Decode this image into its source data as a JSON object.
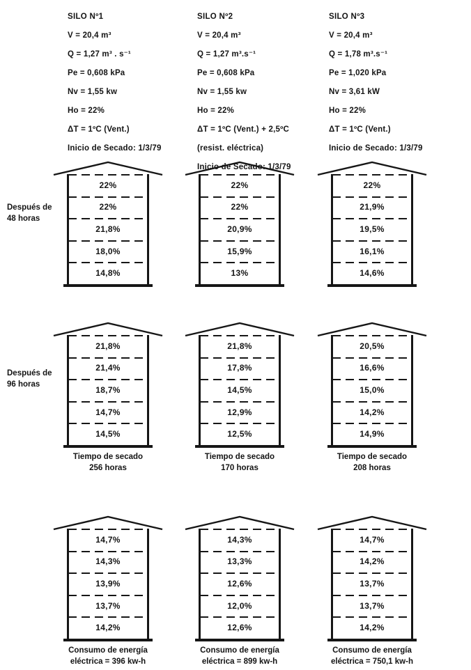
{
  "page": {
    "background": "#ffffff",
    "ink": "#161616"
  },
  "headers": [
    {
      "title": "SILO Nº1",
      "lines": [
        "V = 20,4 m³",
        "Q = 1,27 m³ . s⁻¹",
        "Pe = 0,608 kPa",
        "Nv = 1,55 kw",
        "Ho = 22%",
        "ΔT = 1ºC (Vent.)",
        "Inicio de Secado: 1/3/79"
      ]
    },
    {
      "title": "SILO Nº2",
      "lines": [
        "V = 20,4 m³",
        "Q = 1,27 m³.s⁻¹",
        "Pe = 0,608 kPa",
        "Nv = 1,55 kw",
        "Ho = 22%",
        "ΔT = 1ºC (Vent.) + 2,5ºC",
        "(resist. eléctrica)",
        "Inicio de Secado: 1/3/79"
      ]
    },
    {
      "title": "SILO Nº3",
      "lines": [
        "V = 20,4 m³",
        "Q = 1,78 m³.s⁻¹",
        "Pe = 1,020 kPa",
        "Nv = 3,61 kW",
        "Ho = 22%",
        "ΔT = 1ºC (Vent.)",
        "Inicio de Secado: 1/3/79"
      ]
    }
  ],
  "rows": [
    {
      "label_line1": "Después de",
      "label_line2": "48 horas",
      "silos": [
        {
          "values": [
            "22%",
            "22%",
            "21,8%",
            "18,0%",
            "14,8%"
          ],
          "caption_line1": "",
          "caption_line2": ""
        },
        {
          "values": [
            "22%",
            "22%",
            "20,9%",
            "15,9%",
            "13%"
          ],
          "caption_line1": "",
          "caption_line2": ""
        },
        {
          "values": [
            "22%",
            "21,9%",
            "19,5%",
            "16,1%",
            "14,6%"
          ],
          "caption_line1": "",
          "caption_line2": ""
        }
      ]
    },
    {
      "label_line1": "Después de",
      "label_line2": "96 horas",
      "silos": [
        {
          "values": [
            "21,8%",
            "21,4%",
            "18,7%",
            "14,7%",
            "14,5%"
          ],
          "caption_line1": "Tiempo de secado",
          "caption_line2": "256 horas"
        },
        {
          "values": [
            "21,8%",
            "17,8%",
            "14,5%",
            "12,9%",
            "12,5%"
          ],
          "caption_line1": "Tiempo de secado",
          "caption_line2": "170 horas"
        },
        {
          "values": [
            "20,5%",
            "16,6%",
            "15,0%",
            "14,2%",
            "14,9%"
          ],
          "caption_line1": "Tiempo de secado",
          "caption_line2": "208 horas"
        }
      ]
    },
    {
      "label_line1": "",
      "label_line2": "",
      "silos": [
        {
          "values": [
            "14,7%",
            "14,3%",
            "13,9%",
            "13,7%",
            "14,2%"
          ],
          "caption_line1": "Consumo de energía",
          "caption_line2": "eléctrica = 396 kw-h"
        },
        {
          "values": [
            "14,3%",
            "13,3%",
            "12,6%",
            "12,0%",
            "12,6%"
          ],
          "caption_line1": "Consumo de energía",
          "caption_line2": "eléctrica = 899 kw-h"
        },
        {
          "values": [
            "14,7%",
            "14,2%",
            "13,7%",
            "13,7%",
            "14,2%"
          ],
          "caption_line1": "Consumo de energía",
          "caption_line2": "eléctrica = 750,1 kw-h"
        }
      ]
    }
  ]
}
